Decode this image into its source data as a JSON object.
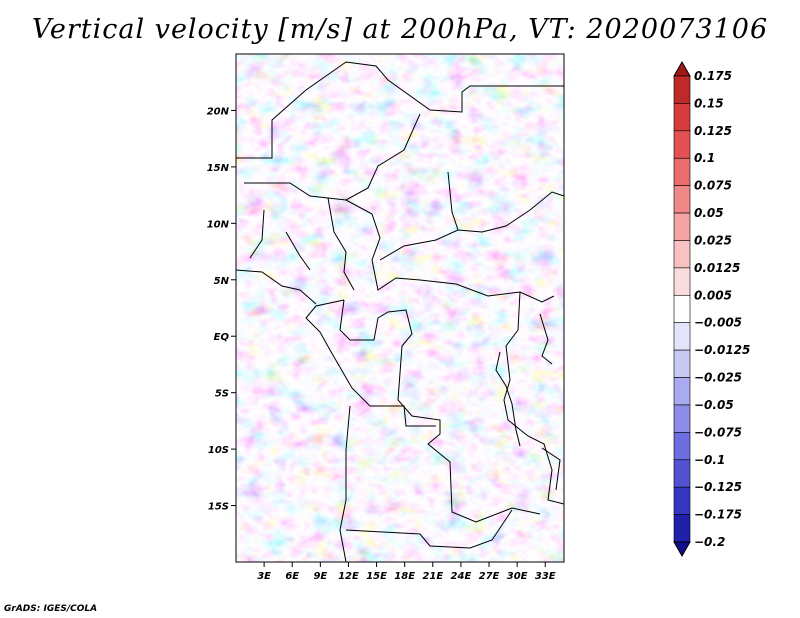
{
  "chart_data": {
    "type": "heatmap",
    "title": "Vertical velocity [m/s] at 200hPa, VT: 2020073106",
    "x_axis": {
      "range": [
        0,
        35
      ],
      "ticks": [
        {
          "value": 3,
          "label": "3E"
        },
        {
          "value": 6,
          "label": "6E"
        },
        {
          "value": 9,
          "label": "9E"
        },
        {
          "value": 12,
          "label": "12E"
        },
        {
          "value": 15,
          "label": "15E"
        },
        {
          "value": 18,
          "label": "18E"
        },
        {
          "value": 21,
          "label": "21E"
        },
        {
          "value": 24,
          "label": "24E"
        },
        {
          "value": 27,
          "label": "27E"
        },
        {
          "value": 30,
          "label": "30E"
        },
        {
          "value": 33,
          "label": "33E"
        }
      ]
    },
    "y_axis": {
      "range": [
        -20,
        25
      ],
      "ticks": [
        {
          "value": 20,
          "label": "20N"
        },
        {
          "value": 15,
          "label": "15N"
        },
        {
          "value": 10,
          "label": "10N"
        },
        {
          "value": 5,
          "label": "5N"
        },
        {
          "value": 0,
          "label": "EQ"
        },
        {
          "value": -5,
          "label": "5S"
        },
        {
          "value": -10,
          "label": "10S"
        },
        {
          "value": -15,
          "label": "15S"
        }
      ]
    },
    "colorbar": {
      "levels": [
        "0.175",
        "0.15",
        "0.125",
        "0.1",
        "0.075",
        "0.05",
        "0.025",
        "0.0125",
        "0.005",
        "−0.005",
        "−0.0125",
        "−0.025",
        "−0.05",
        "−0.075",
        "−0.1",
        "−0.125",
        "−0.175",
        "−0.2"
      ],
      "colors": [
        "#a01818",
        "#be2a2a",
        "#d63c3c",
        "#e25252",
        "#ea6c6c",
        "#f08888",
        "#f4a4a4",
        "#f8c2c2",
        "#fbdcdc",
        "#ffffff",
        "#e4e4fa",
        "#c8c8f4",
        "#aaaaf0",
        "#8c8ce8",
        "#6e6ee0",
        "#5252d2",
        "#3636c0",
        "#2020a8",
        "#10108a"
      ],
      "extend": "both"
    }
  },
  "credit": "GrADS: IGES/COLA"
}
